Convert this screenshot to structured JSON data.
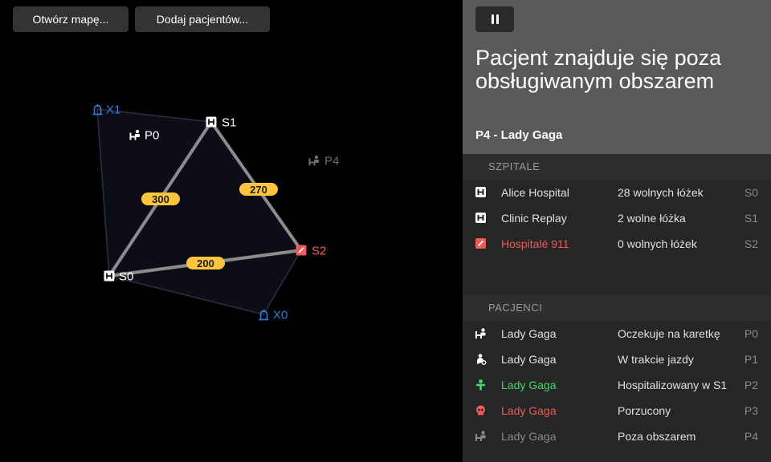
{
  "toolbar": {
    "open_map_label": "Otwórz mapę...",
    "add_patients_label": "Dodaj pacjentów..."
  },
  "colors": {
    "accent_yellow": "#ffc53d",
    "route": "#8c8c8c",
    "exit": "#2f7fe0",
    "danger": "#ef5a5a",
    "ok": "#3ddc6a"
  },
  "map": {
    "nodes": [
      {
        "id": "X1",
        "label": "X1",
        "kind": "exit",
        "icon": "ambulance-exit-icon"
      },
      {
        "id": "S1",
        "label": "S1",
        "kind": "hospital",
        "icon": "hospital-icon"
      },
      {
        "id": "P0",
        "label": "P0",
        "kind": "patient",
        "icon": "patient-waiting-icon"
      },
      {
        "id": "P4",
        "label": "P4",
        "kind": "patient-outside",
        "icon": "patient-waiting-icon"
      },
      {
        "id": "S2",
        "label": "S2",
        "kind": "hospital-full",
        "icon": "hospital-full-icon"
      },
      {
        "id": "S0",
        "label": "S0",
        "kind": "hospital",
        "icon": "hospital-icon"
      },
      {
        "id": "X0",
        "label": "X0",
        "kind": "exit",
        "icon": "ambulance-exit-icon"
      }
    ],
    "edges": [
      {
        "from": "S0",
        "to": "S1",
        "weight": "300"
      },
      {
        "from": "S1",
        "to": "S2",
        "weight": "270"
      },
      {
        "from": "S0",
        "to": "S2",
        "weight": "200"
      }
    ]
  },
  "sidebar": {
    "pause_icon": "pause-icon",
    "status_title": "Pacjent znajduje się poza obsługiwanym obszarem",
    "selected_patient": "P4 - Lady Gaga",
    "hospitals_heading": "SZPITALE",
    "hospitals": [
      {
        "name": "Alice Hospital",
        "info": "28 wolnych łóżek",
        "code": "S0",
        "icon": "hospital-icon",
        "state": "normal"
      },
      {
        "name": "Clinic Replay",
        "info": "2 wolne łóżka",
        "code": "S1",
        "icon": "hospital-icon",
        "state": "normal"
      },
      {
        "name": "Hospitalé 911",
        "info": "0 wolnych łóżek",
        "code": "S2",
        "icon": "hospital-full-icon",
        "state": "full"
      }
    ],
    "patients_heading": "PACJENCI",
    "patients": [
      {
        "name": "Lady Gaga",
        "info": "Oczekuje na karetkę",
        "code": "P0",
        "icon": "patient-waiting-icon",
        "state": "normal"
      },
      {
        "name": "Lady Gaga",
        "info": "W trakcie jazdy",
        "code": "P1",
        "icon": "patient-riding-icon",
        "state": "normal"
      },
      {
        "name": "Lady Gaga",
        "info": "Hospitalizowany w S1",
        "code": "P2",
        "icon": "patient-hospitalized-icon",
        "state": "hospitalized"
      },
      {
        "name": "Lady Gaga",
        "info": "Porzucony",
        "code": "P3",
        "icon": "skull-icon",
        "state": "abandoned"
      },
      {
        "name": "Lady Gaga",
        "info": "Poza obszarem",
        "code": "P4",
        "icon": "patient-waiting-icon",
        "state": "outside"
      }
    ]
  }
}
